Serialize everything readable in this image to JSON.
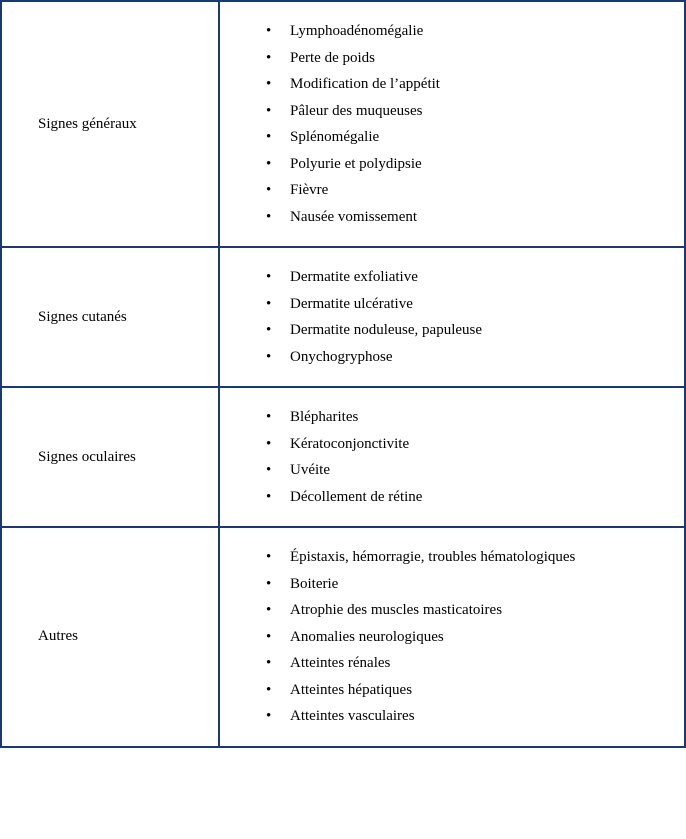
{
  "table": {
    "border_color": "#1a3a6e",
    "background_color": "#ffffff",
    "font_family": "Times New Roman",
    "label_fontsize": 15,
    "item_fontsize": 15,
    "rows": [
      {
        "label": "Signes généraux",
        "items": [
          "Lymphoadénomégalie",
          "Perte de poids",
          "Modification de l’appétit",
          "Pâleur des muqueuses",
          "Splénomégalie",
          "Polyurie et polydipsie",
          "Fièvre",
          "Nausée vomissement"
        ]
      },
      {
        "label": "Signes cutanés",
        "items": [
          "Dermatite exfoliative",
          "Dermatite ulcérative",
          "Dermatite noduleuse, papuleuse",
          "Onychogryphose"
        ]
      },
      {
        "label": "Signes oculaires",
        "items": [
          "Blépharites",
          "Kératoconjonctivite",
          "Uvéite",
          "Décollement de rétine"
        ]
      },
      {
        "label": "Autres",
        "items": [
          "Épistaxis, hémorragie, troubles hématologiques",
          "Boiterie",
          "Atrophie des muscles masticatoires",
          "Anomalies neurologiques",
          "Atteintes rénales",
          "Atteintes hépatiques",
          "Atteintes vasculaires"
        ]
      }
    ]
  }
}
